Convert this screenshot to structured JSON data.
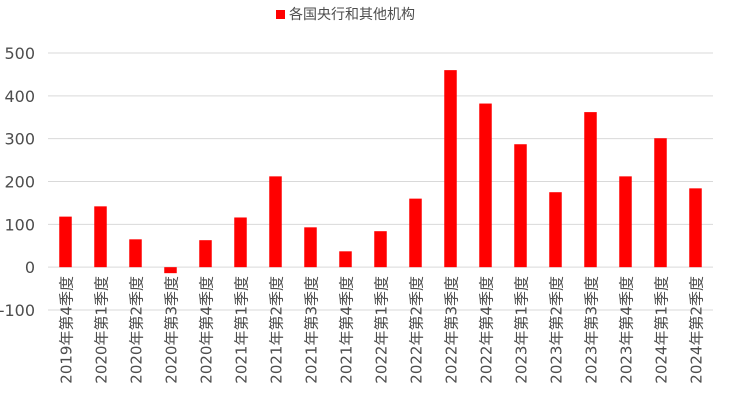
{
  "chart_data": {
    "type": "bar",
    "title": "",
    "xlabel": "",
    "ylabel": "",
    "ylim": [
      -100,
      500
    ],
    "yticks": [
      -100,
      0,
      100,
      200,
      300,
      400,
      500
    ],
    "grid": true,
    "legend_placement": "top-center",
    "categories": [
      "2019年第4季度",
      "2020年第1季度",
      "2020年第2季度",
      "2020年第3季度",
      "2020年第4季度",
      "2021年第1季度",
      "2021年第2季度",
      "2021年第3季度",
      "2021年第4季度",
      "2022年第1季度",
      "2022年第2季度",
      "2022年第3季度",
      "2022年第4季度",
      "2023年第1季度",
      "2023年第2季度",
      "2023年第3季度",
      "2023年第4季度",
      "2024年第1季度",
      "2024年第2季度"
    ],
    "series": [
      {
        "name": "各国央行和其他机构",
        "color": "#ff0000",
        "values": [
          118,
          142,
          65,
          -14,
          63,
          116,
          212,
          93,
          37,
          84,
          160,
          460,
          382,
          287,
          175,
          362,
          212,
          301,
          184
        ]
      }
    ]
  }
}
